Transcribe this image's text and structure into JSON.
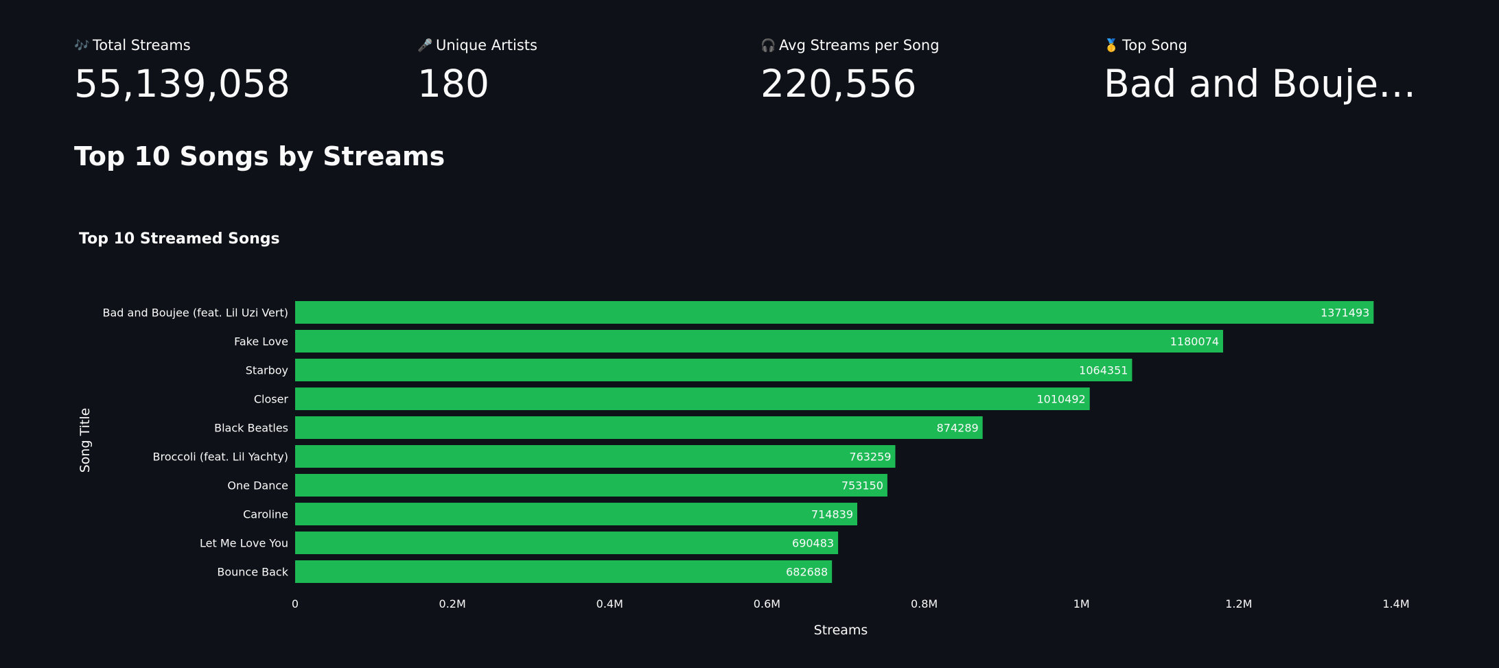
{
  "metrics": [
    {
      "icon": "musical-notes-icon",
      "glyph": "🎶",
      "label": "Total Streams",
      "value": "55,139,058"
    },
    {
      "icon": "microphone-icon",
      "glyph": "🎤",
      "label": "Unique Artists",
      "value": "180"
    },
    {
      "icon": "headphones-icon",
      "glyph": "🎧",
      "label": "Avg Streams per Song",
      "value": "220,556"
    },
    {
      "icon": "medal-icon",
      "glyph": "🥇",
      "label": "Top Song",
      "value": "Bad and Boujee (f…"
    }
  ],
  "section": {
    "title": "Top 10 Songs by Streams"
  },
  "chart_data": {
    "type": "bar",
    "orientation": "horizontal",
    "title": "Top 10 Streamed Songs",
    "xlabel": "Streams",
    "ylabel": "Song Title",
    "xlim": [
      0,
      1400000
    ],
    "xticks": [
      {
        "value": 0,
        "label": "0"
      },
      {
        "value": 200000,
        "label": "0.2M"
      },
      {
        "value": 400000,
        "label": "0.4M"
      },
      {
        "value": 600000,
        "label": "0.6M"
      },
      {
        "value": 800000,
        "label": "0.8M"
      },
      {
        "value": 1000000,
        "label": "1M"
      },
      {
        "value": 1200000,
        "label": "1.2M"
      },
      {
        "value": 1400000,
        "label": "1.4M"
      }
    ],
    "categories": [
      "Bad and Boujee (feat. Lil Uzi Vert)",
      "Fake Love",
      "Starboy",
      "Closer",
      "Black Beatles",
      "Broccoli (feat. Lil Yachty)",
      "One Dance",
      "Caroline",
      "Let Me Love You",
      "Bounce Back"
    ],
    "values": [
      1371493,
      1180074,
      1064351,
      1010492,
      874289,
      763259,
      753150,
      714839,
      690483,
      682688
    ],
    "bar_color": "#1db954",
    "text_color": "#fafafa",
    "grid": false,
    "legend": false
  }
}
